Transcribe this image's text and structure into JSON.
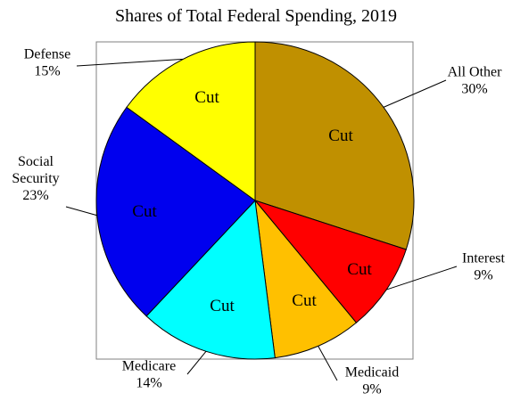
{
  "chart_data": {
    "type": "pie",
    "title": "Shares of Total Federal Spending, 2019",
    "slices": [
      {
        "label_lines": [
          "All Other"
        ],
        "value": 30,
        "value_label": "30%",
        "color": "#C09000",
        "slice_text": "Cut"
      },
      {
        "label_lines": [
          "Interest"
        ],
        "value": 9,
        "value_label": "9%",
        "color": "#FF0000",
        "slice_text": "Cut"
      },
      {
        "label_lines": [
          "Medicaid"
        ],
        "value": 9,
        "value_label": "9%",
        "color": "#FFC000",
        "slice_text": "Cut"
      },
      {
        "label_lines": [
          "Medicare"
        ],
        "value": 14,
        "value_label": "14%",
        "color": "#00FFFF",
        "slice_text": "Cut"
      },
      {
        "label_lines": [
          "Social",
          "Security"
        ],
        "value": 23,
        "value_label": "23%",
        "color": "#0000EE",
        "slice_text": "Cut"
      },
      {
        "label_lines": [
          "Defense"
        ],
        "value": 15,
        "value_label": "15%",
        "color": "#FFFF00",
        "slice_text": "Cut"
      }
    ],
    "start_angle": "12 o'clock",
    "direction": "clockwise",
    "legend": "none",
    "labels": "outside with leader lines"
  }
}
